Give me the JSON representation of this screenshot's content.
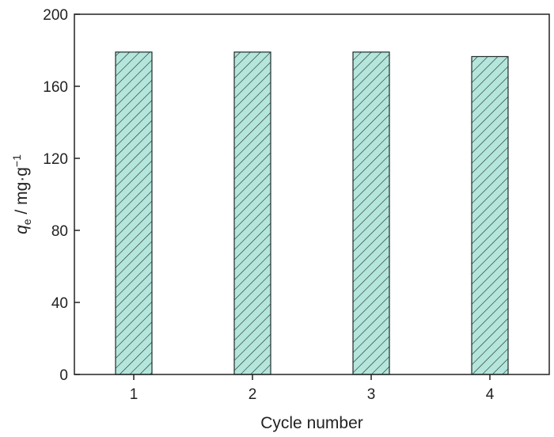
{
  "chart_data": {
    "type": "bar",
    "categories": [
      "1",
      "2",
      "3",
      "4"
    ],
    "values": [
      179,
      179,
      179,
      176.5
    ],
    "xlabel": "Cycle number",
    "ylabel": {
      "symbol": "q",
      "subscript": "e",
      "unit": " / mg·g",
      "superscript": "−1"
    },
    "ylim": [
      0,
      200
    ],
    "yticks": [
      "0",
      "40",
      "80",
      "120",
      "160",
      "200"
    ],
    "grid": false,
    "legend": "none",
    "colors": {
      "bar_fill": "#b4e6dc",
      "hatch": "#1e2a2a",
      "axis": "#222222"
    }
  }
}
